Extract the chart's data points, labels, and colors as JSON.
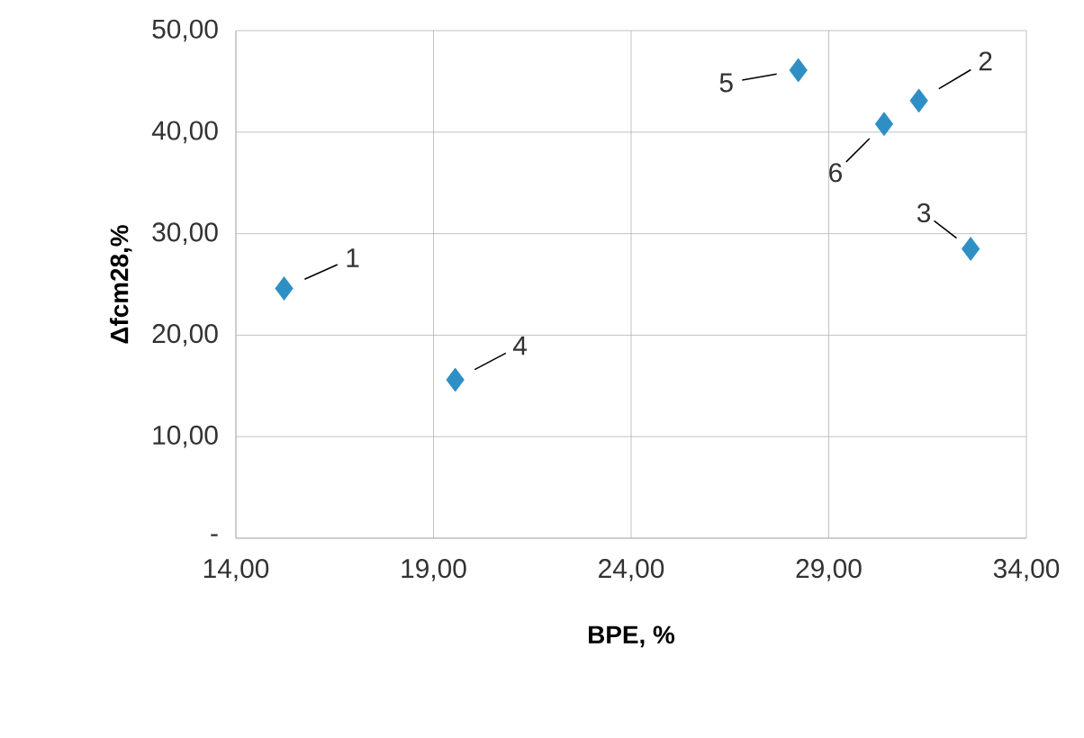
{
  "chart_data": {
    "type": "scatter",
    "xlabel": "BPE, %",
    "ylabel": "Δfcm28,%",
    "x": [
      15.22,
      31.28,
      32.59,
      19.55,
      28.23,
      30.4
    ],
    "series": [
      {
        "color": "#2e8fc4",
        "values": [
          24.6,
          43.1,
          28.5,
          15.6,
          46.1,
          40.8
        ]
      }
    ],
    "xlim": [
      14,
      34
    ],
    "ylim": [
      0,
      50
    ],
    "xticks": [
      {
        "value": 14,
        "label": "14,00"
      },
      {
        "value": 19,
        "label": "19,00"
      },
      {
        "value": 24,
        "label": "24,00"
      },
      {
        "value": 29,
        "label": "29,00"
      },
      {
        "value": 34,
        "label": "34,00"
      }
    ],
    "yticks": [
      {
        "value": 0,
        "label": "-"
      },
      {
        "value": 10,
        "label": "10,00"
      },
      {
        "value": 20,
        "label": "20,00"
      },
      {
        "value": 30,
        "label": "30,00"
      },
      {
        "value": 40,
        "label": "40,00"
      },
      {
        "value": 50,
        "label": "50,00"
      }
    ],
    "annotations": [
      {
        "text": "1",
        "x": 15.22,
        "y": 24.6
      },
      {
        "text": "2",
        "x": 31.28,
        "y": 43.1
      },
      {
        "text": "3",
        "x": 32.59,
        "y": 28.5
      },
      {
        "text": "4",
        "x": 19.55,
        "y": 15.6
      },
      {
        "text": "5",
        "x": 28.23,
        "y": 46.1
      },
      {
        "text": "6",
        "x": 30.4,
        "y": 40.8
      }
    ],
    "grid": true,
    "marker": "diamond"
  }
}
